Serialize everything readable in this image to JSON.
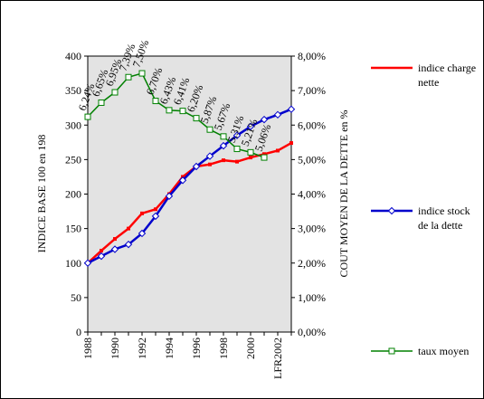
{
  "chart_data": {
    "type": "line",
    "categories": [
      "1988",
      null,
      "1990",
      null,
      "1992",
      null,
      "1994",
      null,
      "1996",
      null,
      "1998",
      null,
      "2000",
      null,
      "LFR2002",
      null
    ],
    "ylabel": "INDICE BASE 100 en 198",
    "y2label": "COUT MOYEN DE LA DETTE en %",
    "ylim": [
      0,
      400
    ],
    "yticks": [
      0,
      50,
      100,
      150,
      200,
      250,
      300,
      350,
      400
    ],
    "y2lim": [
      0,
      8
    ],
    "y2ticks": [
      {
        "value": 0,
        "label": "0,00%"
      },
      {
        "value": 1,
        "label": "1,00%"
      },
      {
        "value": 2,
        "label": "2,00%"
      },
      {
        "value": 3,
        "label": "3,00%"
      },
      {
        "value": 4,
        "label": "4,00%"
      },
      {
        "value": 5,
        "label": "5,00%"
      },
      {
        "value": 6,
        "label": "6,00%"
      },
      {
        "value": 7,
        "label": "7,00%"
      },
      {
        "value": 8,
        "label": "8,00%"
      }
    ],
    "series": [
      {
        "name": "indice charge nette",
        "color": "#ff0000",
        "marker": "square-filled",
        "values": [
          100,
          118,
          135,
          150,
          172,
          178,
          200,
          225,
          240,
          243,
          249,
          247,
          253,
          258,
          263,
          274
        ]
      },
      {
        "name": "indice stock de la dette",
        "color": "#0000cc",
        "marker": "diamond",
        "values": [
          100,
          110,
          120,
          127,
          143,
          168,
          197,
          220,
          240,
          255,
          270,
          285,
          298,
          308,
          315,
          323
        ]
      },
      {
        "name": "taux moyen",
        "color": "#008000",
        "marker": "square-open",
        "axis": "y2",
        "values": [
          6.24,
          6.65,
          6.95,
          7.39,
          7.5,
          6.7,
          6.43,
          6.41,
          6.2,
          5.87,
          5.67,
          5.31,
          5.21,
          5.06,
          null,
          null
        ],
        "value_labels": [
          "6,24%",
          "6,65%",
          "6,95%",
          "7,39%",
          "7,50%",
          "6,70%",
          "6,43%",
          "6,41%",
          "6,20%",
          "5,87%",
          "5,67%",
          "5,31%",
          "5,21%",
          "5,06%",
          null,
          null
        ]
      }
    ]
  }
}
